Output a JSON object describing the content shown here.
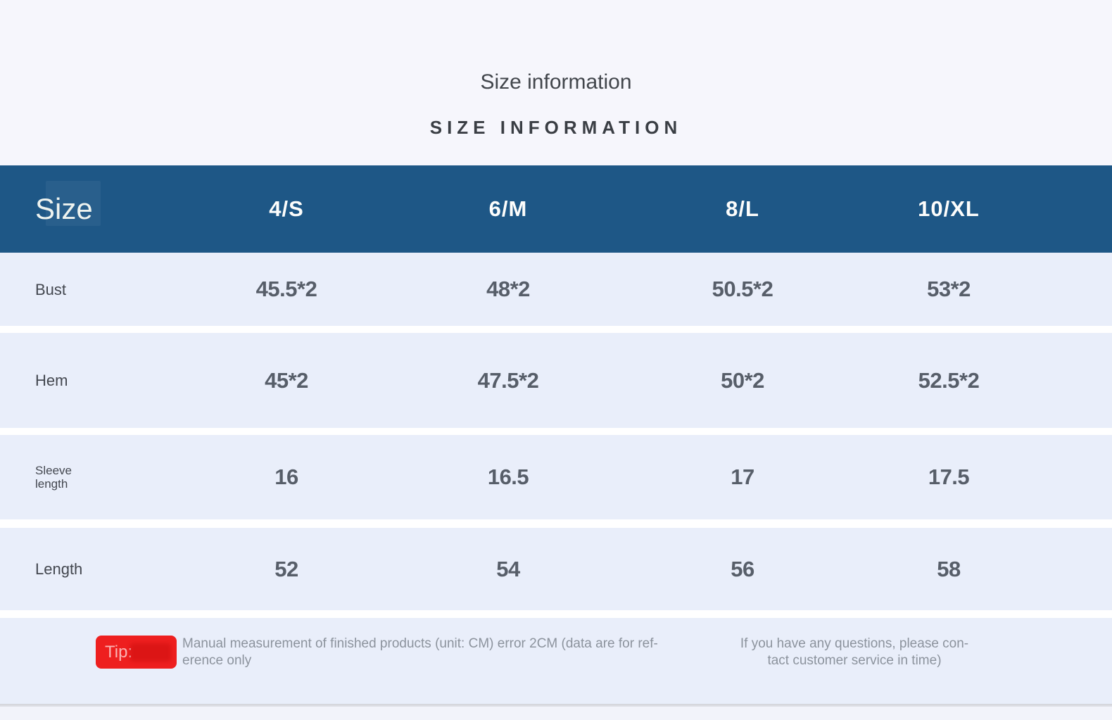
{
  "page": {
    "title": "Size information",
    "subtitle": "SIZE INFORMATION"
  },
  "table": {
    "header": {
      "label": "Size",
      "sizes": [
        "4/S",
        "6/M",
        "8/L",
        "10/XL"
      ]
    },
    "rows": [
      {
        "label": "Bust",
        "values": [
          "45.5*2",
          "48*2",
          "50.5*2",
          "53*2"
        ]
      },
      {
        "label": "Hem",
        "values": [
          "45*2",
          "47.5*2",
          "50*2",
          "52.5*2"
        ]
      },
      {
        "label": "Sleeve\nlength",
        "values": [
          "16",
          "16.5",
          "17",
          "17.5"
        ]
      },
      {
        "label": "Length",
        "values": [
          "52",
          "54",
          "56",
          "58"
        ]
      }
    ]
  },
  "tip": {
    "badge_label": "Tip:",
    "text_left": "Manual measurement of finished products (unit: CM) error 2CM (data are for ref-\nerence only",
    "text_right": "If you have any questions, please con-\ntact customer service in time)"
  },
  "colors": {
    "header_bg": "#1e5786",
    "row_bg": "#e9eefa",
    "top_bg": "#f6f6fc",
    "tip_badge_bg": "#ee1f1f",
    "value_text": "#575e69",
    "tip_text": "#8c939d"
  },
  "units_note": "CM"
}
